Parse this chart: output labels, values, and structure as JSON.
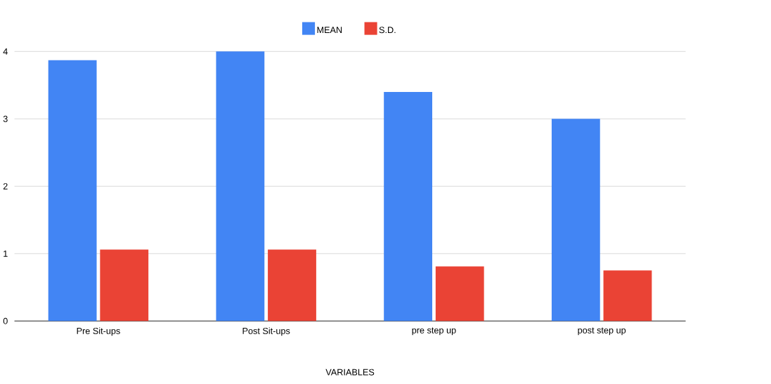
{
  "chart_data": {
    "type": "bar",
    "xlabel": "VARIABLES",
    "categories": [
      "Pre Sit-ups",
      "Post Sit-ups",
      "pre step up",
      "post step up"
    ],
    "series": [
      {
        "name": "MEAN",
        "color": "#4285f4",
        "values": [
          3.87,
          4.0,
          3.4,
          3.0
        ]
      },
      {
        "name": "S.D.",
        "color": "#ea4335",
        "values": [
          1.06,
          1.06,
          0.81,
          0.75
        ]
      }
    ],
    "ylim": [
      0,
      4
    ],
    "yticks": [
      0,
      1,
      2,
      3,
      4
    ],
    "grid": "y",
    "legend": "top"
  }
}
